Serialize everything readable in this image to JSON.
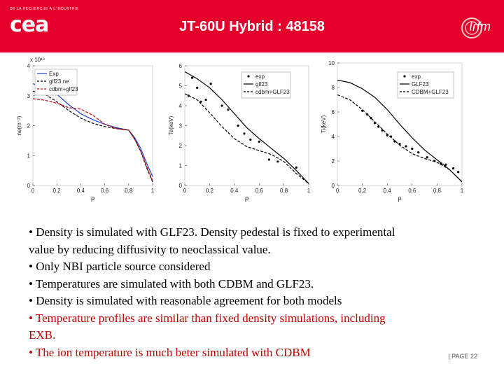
{
  "header": {
    "title": "JT-60U Hybrid : 48158",
    "org_small": "DE LA RECHERCHE À L'INDUSTRIE",
    "logo_text": "cea",
    "partner_logo_text": "Irfm",
    "banner_color": "#e4002b"
  },
  "bullets": [
    {
      "text": "• Density is simulated with GLF23. Density pedestal is fixed to experimental",
      "color": "black"
    },
    {
      "text": "value by reducing diffusivity to neoclassical value.",
      "color": "black"
    },
    {
      "text": "• Only NBI particle source considered",
      "color": "black"
    },
    {
      "text": "• Temperatures are simulated with both CDBM and GLF23.",
      "color": "black"
    },
    {
      "text": "• Density is simulated with reasonable agreement for both models",
      "color": "black"
    },
    {
      "text": "• Temperature profiles are similar than fixed density simulations, including",
      "color": "red"
    },
    {
      "text": "EXB.",
      "color": "red"
    },
    {
      "text": "• The ion temperature is much beter simulated with CDBM",
      "color": "red"
    }
  ],
  "footer": {
    "page_label": "| PAGE 22"
  },
  "chart_data": [
    {
      "type": "line",
      "xlabel": "ρ",
      "ylabel": "ne(m⁻³)",
      "y_multiplier": "x 10¹⁹",
      "xlim": [
        0,
        1
      ],
      "ylim": [
        0,
        4
      ],
      "xticks": [
        "0",
        "0.2",
        "0.4",
        "0.6",
        "0.8",
        "1"
      ],
      "yticks": [
        "0",
        "1",
        "2",
        "3",
        "4"
      ],
      "legend_position": "top-left",
      "series": [
        {
          "name": "Exp",
          "style": "solid",
          "color": "#1f3fd6",
          "x": [
            0,
            0.1,
            0.2,
            0.3,
            0.4,
            0.5,
            0.6,
            0.7,
            0.8,
            0.85,
            0.9,
            0.95,
            1.0
          ],
          "y": [
            3.4,
            3.3,
            3.05,
            2.7,
            2.4,
            2.2,
            2.05,
            1.93,
            1.85,
            1.6,
            1.25,
            0.75,
            0.3
          ]
        },
        {
          "name": "glf23 ne",
          "style": "dashed",
          "color": "#000000",
          "x": [
            0,
            0.1,
            0.2,
            0.3,
            0.4,
            0.5,
            0.6,
            0.7,
            0.8,
            0.85,
            0.9,
            0.95,
            1.0
          ],
          "y": [
            3.15,
            3.05,
            2.8,
            2.5,
            2.25,
            2.08,
            1.97,
            1.9,
            1.85,
            1.55,
            1.15,
            0.6,
            0.12
          ]
        },
        {
          "name": "cdbm+glf23",
          "style": "dashed",
          "color": "#d00000",
          "x": [
            0,
            0.1,
            0.2,
            0.3,
            0.4,
            0.5,
            0.6,
            0.7,
            0.8,
            0.85,
            0.9,
            0.95,
            1.0
          ],
          "y": [
            2.9,
            2.85,
            2.75,
            2.6,
            2.55,
            2.35,
            2.05,
            1.9,
            1.85,
            1.55,
            1.15,
            0.65,
            0.15
          ]
        }
      ]
    },
    {
      "type": "line",
      "xlabel": "ρ",
      "ylabel": "Te(keV)",
      "xlim": [
        0,
        1
      ],
      "ylim": [
        0,
        6
      ],
      "xticks": [
        "0",
        "0.2",
        "0.4",
        "0.6",
        "0.8",
        "1"
      ],
      "yticks": [
        "0",
        "1",
        "2",
        "3",
        "4",
        "5",
        "6"
      ],
      "legend_position": "top-right",
      "series": [
        {
          "name": "exp",
          "style": "dots",
          "color": "#000000",
          "x": [
            0.03,
            0.06,
            0.1,
            0.13,
            0.17,
            0.21,
            0.3,
            0.35,
            0.43,
            0.48,
            0.53,
            0.6,
            0.68,
            0.75,
            0.9
          ],
          "y": [
            4.5,
            5.4,
            4.9,
            4.2,
            4.3,
            5.1,
            4.0,
            3.8,
            3.0,
            2.6,
            2.3,
            2.2,
            1.3,
            1.2,
            0.9
          ]
        },
        {
          "name": "glf23",
          "style": "solid",
          "color": "#000000",
          "x": [
            0,
            0.1,
            0.2,
            0.3,
            0.4,
            0.5,
            0.6,
            0.7,
            0.8,
            0.9,
            1.0
          ],
          "y": [
            5.7,
            5.35,
            4.9,
            4.3,
            3.6,
            2.9,
            2.35,
            1.85,
            1.35,
            0.75,
            0.1
          ]
        },
        {
          "name": "cdbm+GLF23",
          "style": "dashed",
          "color": "#000000",
          "x": [
            0,
            0.1,
            0.2,
            0.3,
            0.4,
            0.5,
            0.6,
            0.7,
            0.8,
            0.9,
            1.0
          ],
          "y": [
            4.6,
            4.3,
            3.65,
            2.95,
            2.35,
            1.95,
            1.75,
            1.55,
            1.2,
            0.6,
            0.1
          ]
        }
      ]
    },
    {
      "type": "line",
      "xlabel": "ρ",
      "ylabel": "Ti(keV)",
      "xlim": [
        0,
        1
      ],
      "ylim": [
        0,
        10
      ],
      "xticks": [
        "0",
        "0.2",
        "0.4",
        "0.6",
        "0.8",
        "1"
      ],
      "yticks": [
        "0",
        "2",
        "4",
        "6",
        "8",
        "10"
      ],
      "legend_position": "top-right",
      "series": [
        {
          "name": "exp",
          "style": "dots",
          "color": "#000000",
          "x": [
            0.2,
            0.24,
            0.27,
            0.3,
            0.33,
            0.36,
            0.4,
            0.43,
            0.46,
            0.5,
            0.55,
            0.6,
            0.65,
            0.72,
            0.78,
            0.83,
            0.87,
            0.93,
            0.97
          ],
          "y": [
            6.1,
            5.8,
            5.5,
            5.1,
            4.8,
            4.5,
            4.1,
            4.0,
            3.6,
            3.4,
            3.2,
            3.0,
            2.7,
            2.3,
            2.0,
            1.8,
            1.7,
            1.4,
            1.1
          ]
        },
        {
          "name": "GLF23",
          "style": "solid",
          "color": "#000000",
          "x": [
            0,
            0.1,
            0.2,
            0.3,
            0.4,
            0.5,
            0.6,
            0.7,
            0.8,
            0.9,
            1.0
          ],
          "y": [
            8.6,
            8.4,
            7.9,
            7.2,
            6.2,
            5.0,
            3.9,
            2.9,
            2.1,
            1.3,
            0.3
          ]
        },
        {
          "name": "CDBM+GLF23",
          "style": "dashed",
          "color": "#000000",
          "x": [
            0,
            0.1,
            0.2,
            0.3,
            0.4,
            0.5,
            0.6,
            0.7,
            0.8,
            0.9,
            1.0
          ],
          "y": [
            7.4,
            7.0,
            6.2,
            5.2,
            4.2,
            3.3,
            2.6,
            2.2,
            1.9,
            1.3,
            0.3
          ]
        }
      ]
    }
  ]
}
